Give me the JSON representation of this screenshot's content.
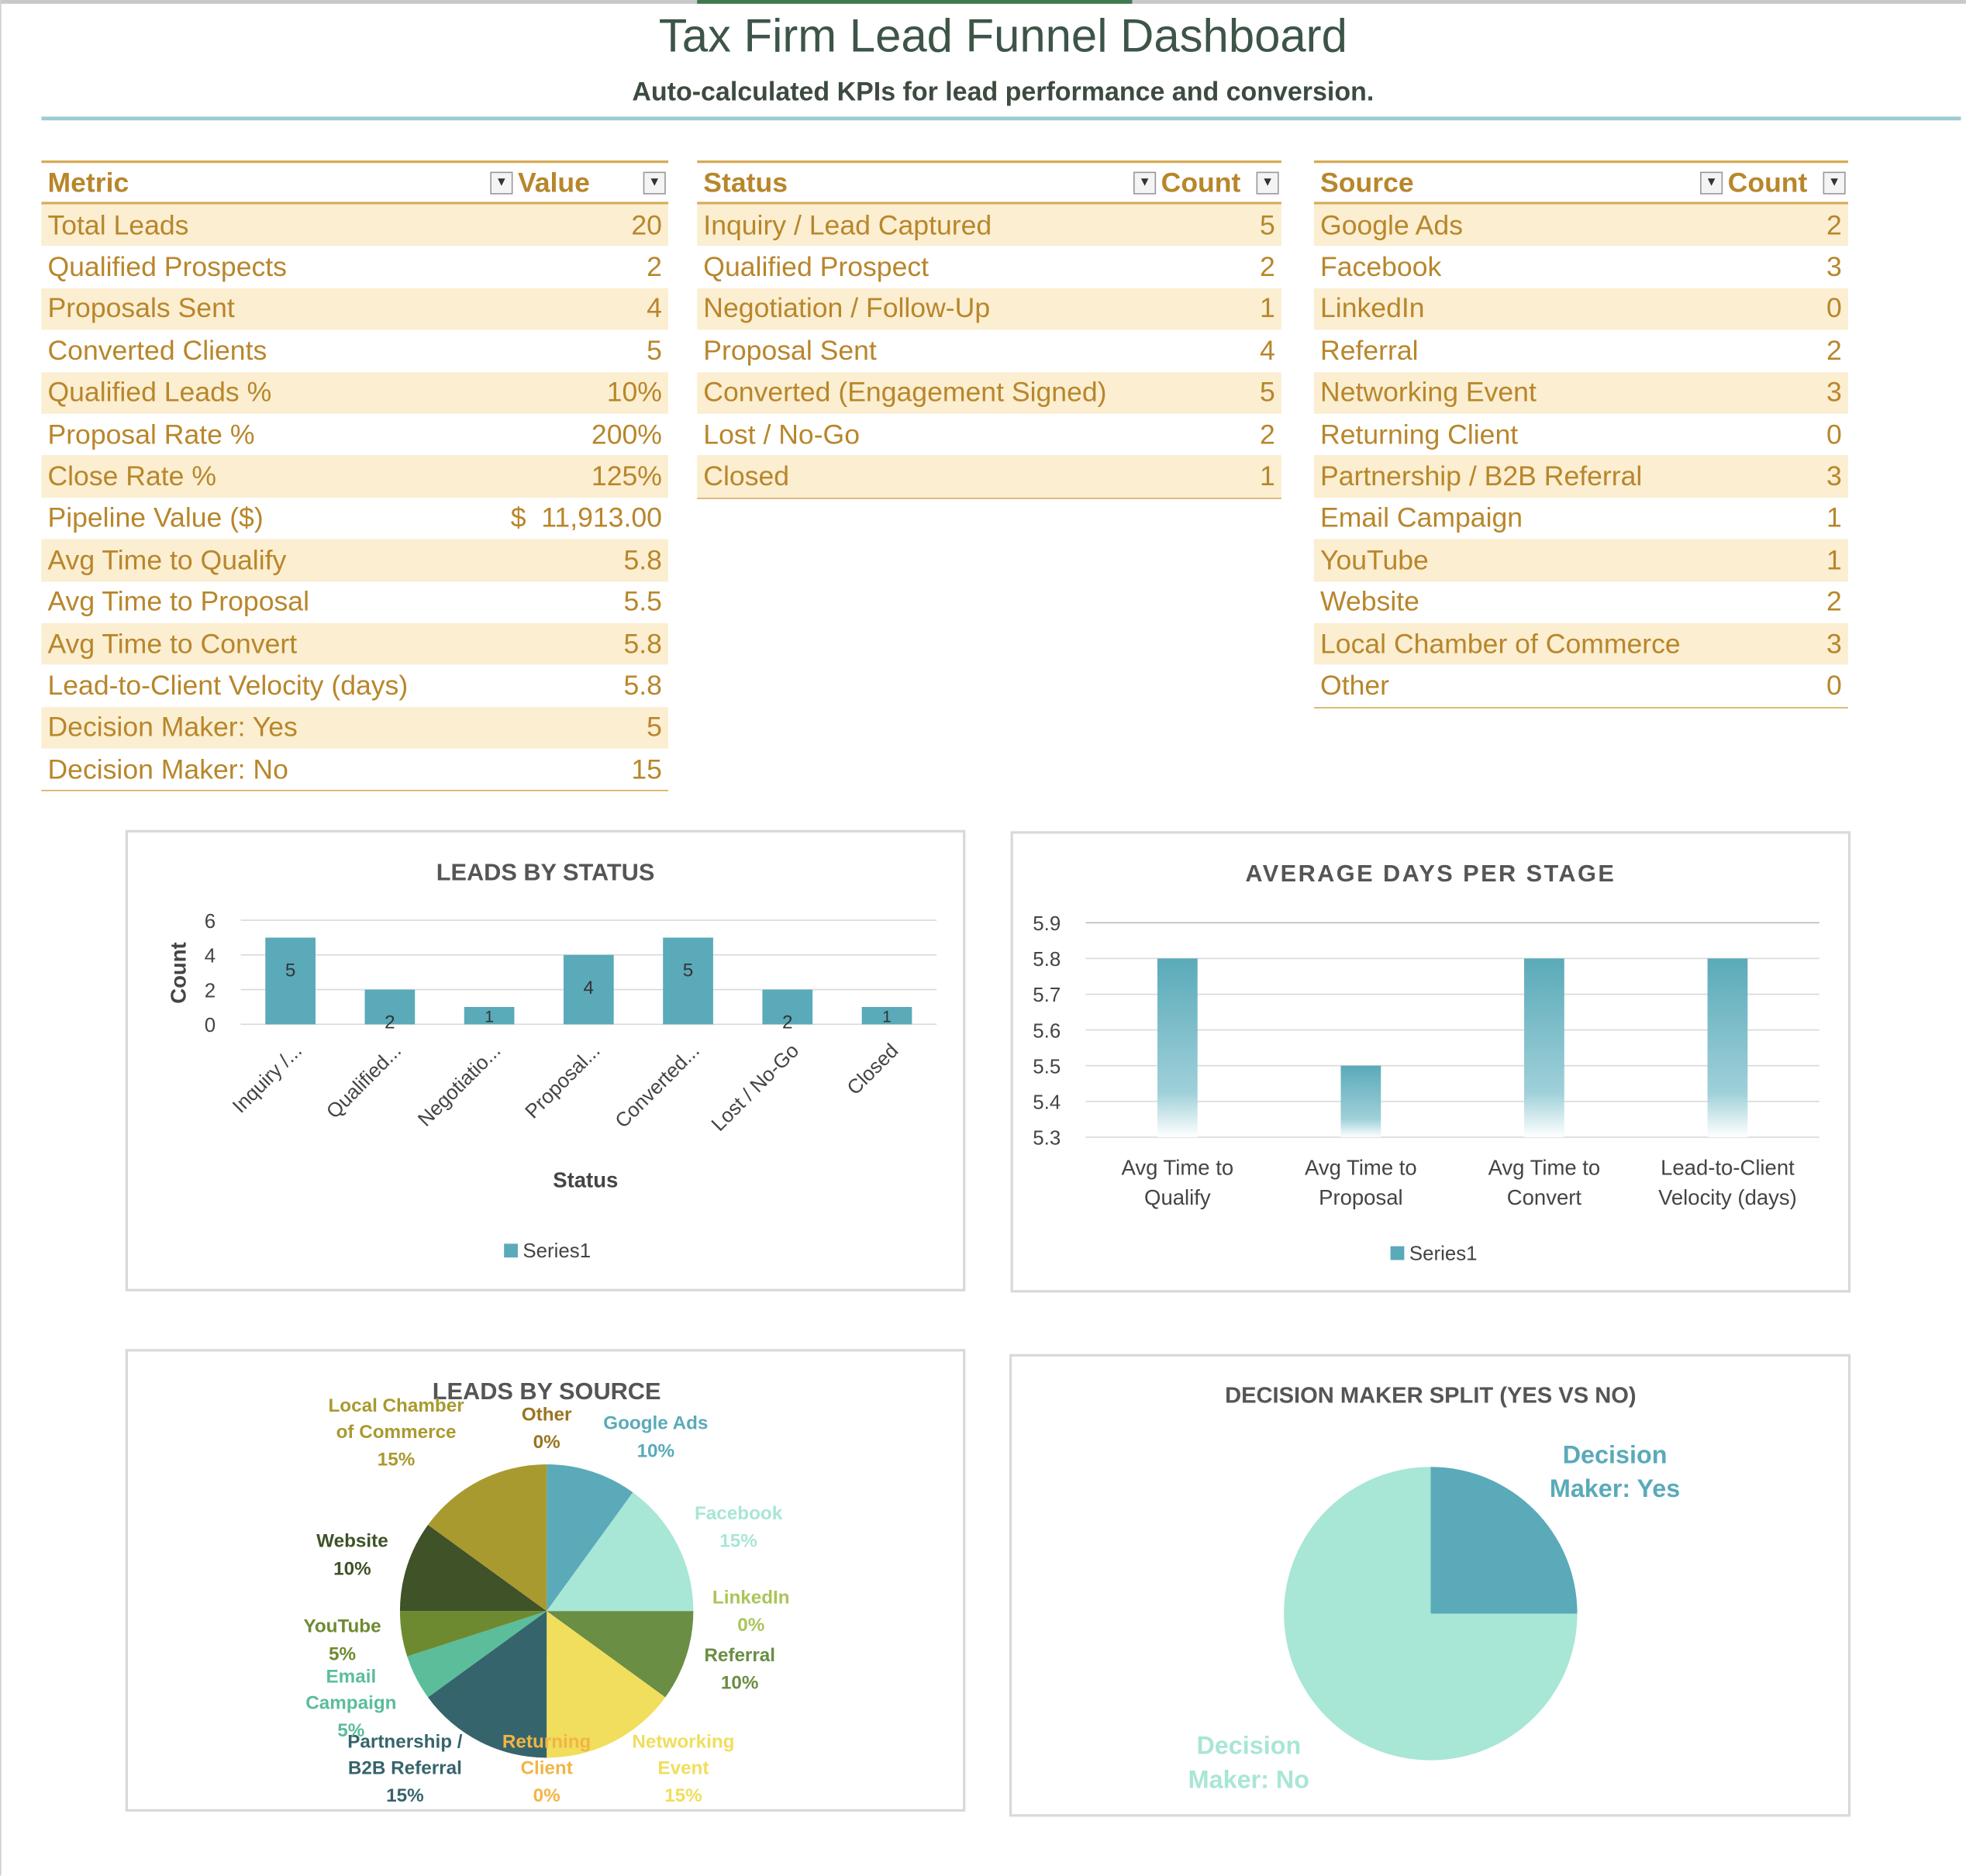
{
  "header": {
    "title": "Tax Firm Lead Funnel Dashboard",
    "subtitle": "Auto-calculated KPIs for lead performance and conversion."
  },
  "metrics_table": {
    "headers": [
      "Metric",
      "Value"
    ],
    "rows": [
      [
        "Total Leads",
        "20"
      ],
      [
        "Qualified Prospects",
        "2"
      ],
      [
        "Proposals Sent",
        "4"
      ],
      [
        "Converted Clients",
        "5"
      ],
      [
        "Qualified Leads %",
        "10%"
      ],
      [
        "Proposal Rate %",
        "200%"
      ],
      [
        "Close Rate %",
        "125%"
      ],
      [
        "Pipeline Value ($)",
        "$  11,913.00"
      ],
      [
        "Avg Time to Qualify",
        "5.8"
      ],
      [
        "Avg Time to Proposal",
        "5.5"
      ],
      [
        "Avg Time to Convert",
        "5.8"
      ],
      [
        "Lead-to-Client Velocity (days)",
        "5.8"
      ],
      [
        "Decision Maker: Yes",
        "5"
      ],
      [
        "Decision Maker: No",
        "15"
      ]
    ]
  },
  "status_table": {
    "headers": [
      "Status",
      "Count"
    ],
    "rows": [
      [
        "Inquiry / Lead Captured",
        "5"
      ],
      [
        "Qualified Prospect",
        "2"
      ],
      [
        "Negotiation / Follow-Up",
        "1"
      ],
      [
        "Proposal Sent",
        "4"
      ],
      [
        "Converted (Engagement Signed)",
        "5"
      ],
      [
        "Lost / No-Go",
        "2"
      ],
      [
        "Closed",
        "1"
      ]
    ]
  },
  "source_table": {
    "headers": [
      "Source",
      "Count"
    ],
    "rows": [
      [
        "Google Ads",
        "2"
      ],
      [
        "Facebook",
        "3"
      ],
      [
        "LinkedIn",
        "0"
      ],
      [
        "Referral",
        "2"
      ],
      [
        "Networking Event",
        "3"
      ],
      [
        "Returning Client",
        "0"
      ],
      [
        "Partnership / B2B Referral",
        "3"
      ],
      [
        "Email Campaign",
        "1"
      ],
      [
        "YouTube",
        "1"
      ],
      [
        "Website",
        "2"
      ],
      [
        "Local Chamber of Commerce",
        "3"
      ],
      [
        "Other",
        "0"
      ]
    ]
  },
  "chart_data": [
    {
      "type": "bar",
      "title": "LEADS BY STATUS",
      "xlabel": "Status",
      "ylabel": "Count",
      "ylim": [
        0,
        6
      ],
      "yticks": [
        "0",
        "2",
        "4",
        "6"
      ],
      "categories": [
        "Inquiry /...",
        "Qualified...",
        "Negotiatio...",
        "Proposal...",
        "Converted...",
        "Lost / No-Go",
        "Closed"
      ],
      "values": [
        5,
        2,
        1,
        4,
        5,
        2,
        1
      ],
      "legend": "Series1",
      "color": "#5aaab9"
    },
    {
      "type": "bar",
      "title": "AVERAGE DAYS PER STAGE",
      "ylim": [
        5.3,
        5.9
      ],
      "yticks": [
        "5.3",
        "5.4",
        "5.5",
        "5.6",
        "5.7",
        "5.8",
        "5.9"
      ],
      "categories": [
        [
          "Avg Time to",
          "Qualify"
        ],
        [
          "Avg Time to",
          "Proposal"
        ],
        [
          "Avg Time to",
          "Convert"
        ],
        [
          "Lead-to-Client",
          "Velocity (days)"
        ]
      ],
      "values": [
        5.8,
        5.5,
        5.8,
        5.8
      ],
      "legend": "Series1",
      "color": "#5aaab9"
    },
    {
      "type": "pie",
      "title": "LEADS BY SOURCE",
      "slices": [
        {
          "label": "Google Ads",
          "value": 2,
          "pct": "10%",
          "color": "#5aaab9"
        },
        {
          "label": "Facebook",
          "value": 3,
          "pct": "15%",
          "color": "#a8e6d6"
        },
        {
          "label": "LinkedIn",
          "value": 0,
          "pct": "0%",
          "color": "#a9c55a"
        },
        {
          "label": "Referral",
          "value": 2,
          "pct": "10%",
          "color": "#6a8e44"
        },
        {
          "label": "Networking Event",
          "value": 3,
          "pct": "15%",
          "color": "#f0de5c"
        },
        {
          "label": "Returning Client",
          "value": 0,
          "pct": "0%",
          "color": "#f2b545"
        },
        {
          "label": "Partnership / B2B Referral",
          "value": 3,
          "pct": "15%",
          "color": "#36646c"
        },
        {
          "label": "Email Campaign",
          "value": 1,
          "pct": "5%",
          "color": "#5bbd9a"
        },
        {
          "label": "YouTube",
          "value": 1,
          "pct": "5%",
          "color": "#6e8a30"
        },
        {
          "label": "Website",
          "value": 2,
          "pct": "10%",
          "color": "#3f5228"
        },
        {
          "label": "Local Chamber of Commerce",
          "value": 3,
          "pct": "15%",
          "color": "#a99a30"
        },
        {
          "label": "Other",
          "value": 0,
          "pct": "0%",
          "color": "#9a7420"
        }
      ]
    },
    {
      "type": "pie",
      "title": "DECISION MAKER SPLIT (YES VS NO)",
      "slices": [
        {
          "label": "Decision Maker: Yes",
          "value": 5,
          "color": "#5aaab9"
        },
        {
          "label": "Decision Maker: No",
          "value": 15,
          "color": "#a8e6d6"
        }
      ]
    }
  ]
}
